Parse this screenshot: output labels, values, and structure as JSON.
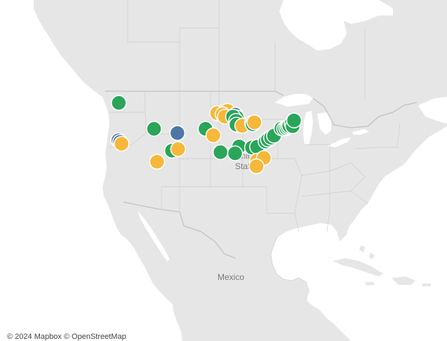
{
  "labels": {
    "country_us_line1": "United",
    "country_us_line2": "States",
    "country_mexico": "Mexico"
  },
  "attribution": {
    "mapbox": "© 2024 Mapbox",
    "osm": "© OpenStreetMap"
  },
  "colors": {
    "water": "#ffffff",
    "land": "#e6e6e6",
    "border": "#c8c8c8",
    "green": "#2aa55a",
    "gold": "#f5b83a",
    "blue": "#4d77a8"
  },
  "map_points": [
    {
      "lon": -122.3,
      "lat": 47.6,
      "category": "green"
    },
    {
      "lon": -122.4,
      "lat": 37.8,
      "category": "blue"
    },
    {
      "lon": -121.9,
      "lat": 37.4,
      "category": "blue"
    },
    {
      "lon": -121.5,
      "lat": 36.9,
      "category": "gold"
    },
    {
      "lon": -111.9,
      "lat": 40.8,
      "category": "green"
    },
    {
      "lon": -105.0,
      "lat": 39.7,
      "category": "blue"
    },
    {
      "lon": -106.6,
      "lat": 35.1,
      "category": "green"
    },
    {
      "lon": -104.8,
      "lat": 35.5,
      "category": "gold"
    },
    {
      "lon": -111.0,
      "lat": 32.2,
      "category": "gold"
    },
    {
      "lon": -96.7,
      "lat": 40.8,
      "category": "green"
    },
    {
      "lon": -94.4,
      "lat": 39.1,
      "category": "gold"
    },
    {
      "lon": -92.3,
      "lat": 34.7,
      "category": "green"
    },
    {
      "lon": -93.3,
      "lat": 44.9,
      "category": "gold"
    },
    {
      "lon": -90.2,
      "lat": 45.5,
      "category": "gold"
    },
    {
      "lon": -91.7,
      "lat": 44.6,
      "category": "gold"
    },
    {
      "lon": -91.0,
      "lat": 44.0,
      "category": "gold"
    },
    {
      "lon": -87.9,
      "lat": 44.5,
      "category": "blue"
    },
    {
      "lon": -87.5,
      "lat": 43.8,
      "category": "green"
    },
    {
      "lon": -87.9,
      "lat": 43.2,
      "category": "blue"
    },
    {
      "lon": -88.6,
      "lat": 44.0,
      "category": "green"
    },
    {
      "lon": -87.7,
      "lat": 42.9,
      "category": "green"
    },
    {
      "lon": -87.6,
      "lat": 41.9,
      "category": "green"
    },
    {
      "lon": -85.9,
      "lat": 41.6,
      "category": "gold"
    },
    {
      "lon": -83.0,
      "lat": 42.3,
      "category": "green"
    },
    {
      "lon": -82.8,
      "lat": 42.0,
      "category": "green"
    },
    {
      "lon": -82.3,
      "lat": 42.5,
      "category": "gold"
    },
    {
      "lon": -86.8,
      "lat": 36.2,
      "category": "green"
    },
    {
      "lon": -88.0,
      "lat": 34.4,
      "category": "green"
    },
    {
      "lon": -83.0,
      "lat": 35.9,
      "category": "green"
    },
    {
      "lon": -81.5,
      "lat": 36.1,
      "category": "green"
    },
    {
      "lon": -79.0,
      "lat": 37.5,
      "category": "green"
    },
    {
      "lon": -78.3,
      "lat": 38.0,
      "category": "green"
    },
    {
      "lon": -77.4,
      "lat": 38.5,
      "category": "green"
    },
    {
      "lon": -76.5,
      "lat": 39.0,
      "category": "green"
    },
    {
      "lon": -81.5,
      "lat": 32.5,
      "category": "gold"
    },
    {
      "lon": -79.5,
      "lat": 33.2,
      "category": "gold"
    },
    {
      "lon": -81.7,
      "lat": 31.0,
      "category": "gold"
    },
    {
      "lon": -74.3,
      "lat": 40.9,
      "category": "green"
    },
    {
      "lon": -73.5,
      "lat": 40.8,
      "category": "green"
    },
    {
      "lon": -72.9,
      "lat": 41.0,
      "category": "green"
    },
    {
      "lon": -72.4,
      "lat": 41.3,
      "category": "green"
    },
    {
      "lon": -72.0,
      "lat": 41.6,
      "category": "green"
    },
    {
      "lon": -71.3,
      "lat": 42.2,
      "category": "green"
    },
    {
      "lon": -71.0,
      "lat": 41.5,
      "category": "green"
    },
    {
      "lon": -70.6,
      "lat": 43.0,
      "category": "green"
    }
  ]
}
